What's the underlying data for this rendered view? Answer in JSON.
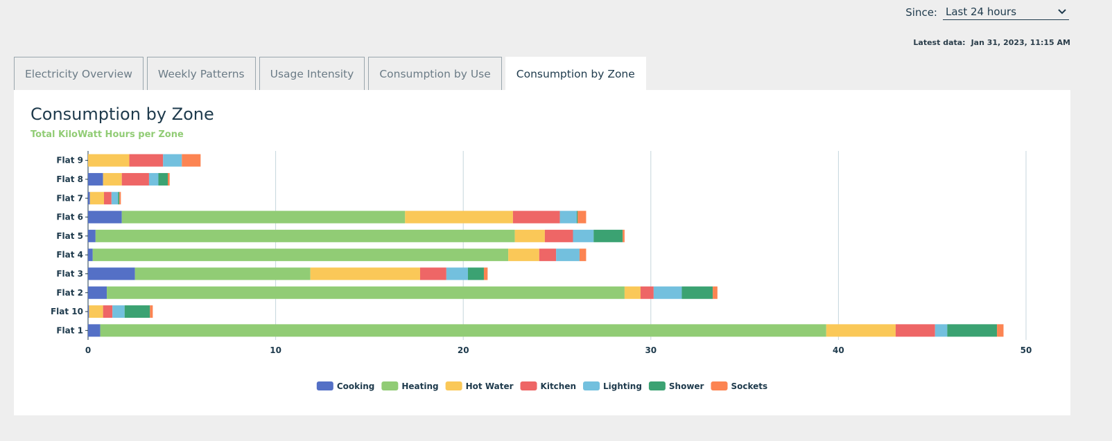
{
  "header": {
    "since_label": "Since:",
    "since_value": "Last 24 hours",
    "latest_label": "Latest data:",
    "latest_value": "Jan 31, 2023, 11:15 AM"
  },
  "tabs": [
    "Electricity Overview",
    "Weekly Patterns",
    "Usage Intensity",
    "Consumption by Use",
    "Consumption by Zone"
  ],
  "active_tab": 4,
  "chart_data": {
    "type": "bar",
    "orientation": "horizontal",
    "stacked": true,
    "title": "Consumption by Zone",
    "subtitle": "Total KiloWatt Hours per Zone",
    "categories": [
      "Flat 9",
      "Flat 8",
      "Flat 7",
      "Flat 6",
      "Flat 5",
      "Flat 4",
      "Flat 3",
      "Flat 2",
      "Flat 10",
      "Flat 1"
    ],
    "series": [
      {
        "name": "Cooking",
        "color": "#5470c6",
        "values": [
          0,
          0.8,
          0.1,
          1.8,
          0.4,
          0.25,
          2.5,
          1.0,
          0.05,
          0.65
        ]
      },
      {
        "name": "Heating",
        "color": "#91cc75",
        "values": [
          0,
          0,
          0,
          15.1,
          22.35,
          22.15,
          9.35,
          27.6,
          0,
          38.7
        ]
      },
      {
        "name": "Hot Water",
        "color": "#fac858",
        "values": [
          2.2,
          1.0,
          0.75,
          5.75,
          1.6,
          1.65,
          5.85,
          0.85,
          0.75,
          3.7
        ]
      },
      {
        "name": "Kitchen",
        "color": "#ee6666",
        "values": [
          1.8,
          1.45,
          0.4,
          2.5,
          1.5,
          0.9,
          1.4,
          0.7,
          0.5,
          2.1
        ]
      },
      {
        "name": "Lighting",
        "color": "#73c0de",
        "values": [
          1.0,
          0.5,
          0.35,
          0.9,
          1.1,
          1.25,
          1.15,
          1.5,
          0.65,
          0.65
        ]
      },
      {
        "name": "Shower",
        "color": "#3ba272",
        "values": [
          0,
          0.5,
          0.07,
          0.05,
          1.55,
          0,
          0.85,
          1.65,
          1.35,
          2.65
        ]
      },
      {
        "name": "Sockets",
        "color": "#fc8452",
        "values": [
          1.0,
          0.1,
          0.08,
          0.45,
          0.1,
          0.35,
          0.2,
          0.25,
          0.15,
          0.35
        ]
      }
    ],
    "xlim": [
      0,
      50
    ],
    "xticks": [
      0,
      10,
      20,
      30,
      40,
      50
    ],
    "grid": true,
    "legend": "bottom"
  }
}
